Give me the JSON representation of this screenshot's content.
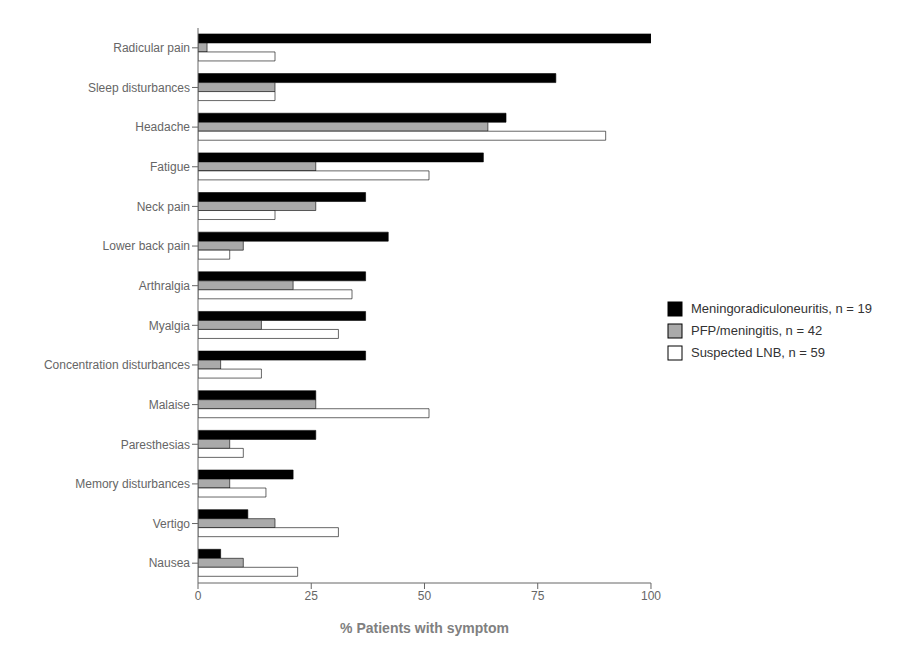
{
  "chart_data": {
    "type": "bar",
    "orientation": "horizontal",
    "categories": [
      "Radicular pain",
      "Sleep disturbances",
      "Headache",
      "Fatigue",
      "Neck pain",
      "Lower back pain",
      "Arthralgia",
      "Myalgia",
      "Concentration disturbances",
      "Malaise",
      "Paresthesias",
      "Memory disturbances",
      "Vertigo",
      "Nausea"
    ],
    "series": [
      {
        "name": "Meningoradiculoneuritis, n = 19",
        "color": "#000000",
        "values": [
          100,
          79,
          68,
          63,
          37,
          42,
          37,
          37,
          37,
          26,
          26,
          21,
          11,
          5
        ]
      },
      {
        "name": "PFP/meningitis, n = 42",
        "color": "#aaaaaa",
        "values": [
          2,
          17,
          64,
          26,
          26,
          10,
          21,
          14,
          5,
          26,
          7,
          7,
          17,
          10
        ]
      },
      {
        "name": "Suspected LNB, n = 59",
        "color": "#ffffff",
        "values": [
          17,
          17,
          90,
          51,
          17,
          7,
          34,
          31,
          14,
          51,
          10,
          15,
          31,
          22
        ]
      }
    ],
    "xlabel": "% Patients with symptom",
    "xlim": [
      0,
      100
    ],
    "xticks": [
      0,
      25,
      50,
      75,
      100
    ],
    "grid": false,
    "legend": "right"
  }
}
